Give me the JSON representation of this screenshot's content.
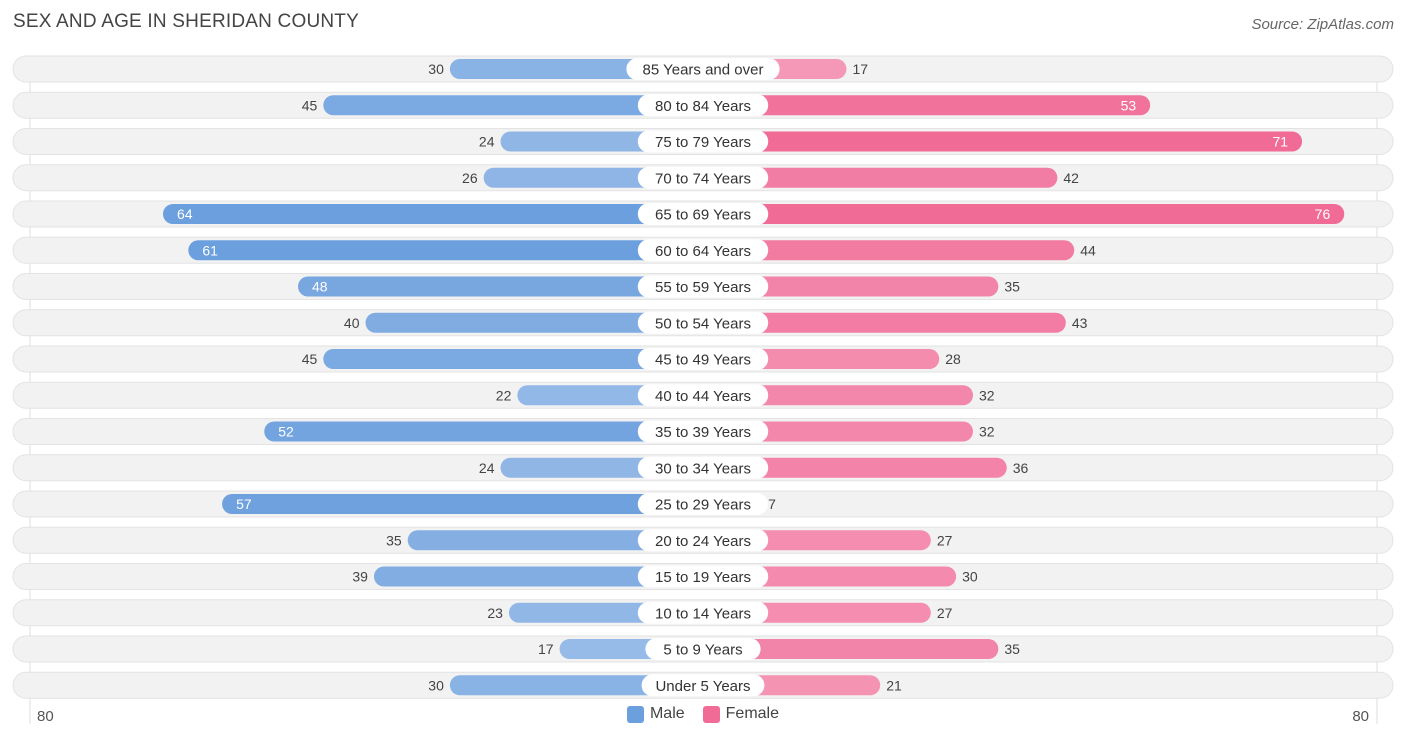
{
  "title": "SEX AND AGE IN SHERIDAN COUNTY",
  "source": "Source: ZipAtlas.com",
  "colors": {
    "male": "#6c9fdd",
    "male_light": "#a8c6ec",
    "female": "#f06b96",
    "female_light": "#f7a8c3",
    "row_bg": "#f2f2f2"
  },
  "legend": {
    "male": "Male",
    "female": "Female"
  },
  "axis": {
    "left_max": "80",
    "right_max": "80"
  },
  "chart_data": {
    "type": "bar",
    "orientation": "horizontal-diverging",
    "categories": [
      "85 Years and over",
      "80 to 84 Years",
      "75 to 79 Years",
      "70 to 74 Years",
      "65 to 69 Years",
      "60 to 64 Years",
      "55 to 59 Years",
      "50 to 54 Years",
      "45 to 49 Years",
      "40 to 44 Years",
      "35 to 39 Years",
      "30 to 34 Years",
      "25 to 29 Years",
      "20 to 24 Years",
      "15 to 19 Years",
      "10 to 14 Years",
      "5 to 9 Years",
      "Under 5 Years"
    ],
    "series": [
      {
        "name": "Male",
        "values": [
          30,
          45,
          24,
          26,
          64,
          61,
          48,
          40,
          45,
          22,
          52,
          24,
          57,
          35,
          39,
          23,
          17,
          30
        ]
      },
      {
        "name": "Female",
        "values": [
          17,
          53,
          71,
          42,
          76,
          44,
          35,
          43,
          28,
          32,
          32,
          36,
          7,
          27,
          30,
          27,
          35,
          21
        ]
      }
    ],
    "xlim": [
      -80,
      80
    ],
    "title": "SEX AND AGE IN SHERIDAN COUNTY",
    "legend_position": "bottom-center"
  }
}
